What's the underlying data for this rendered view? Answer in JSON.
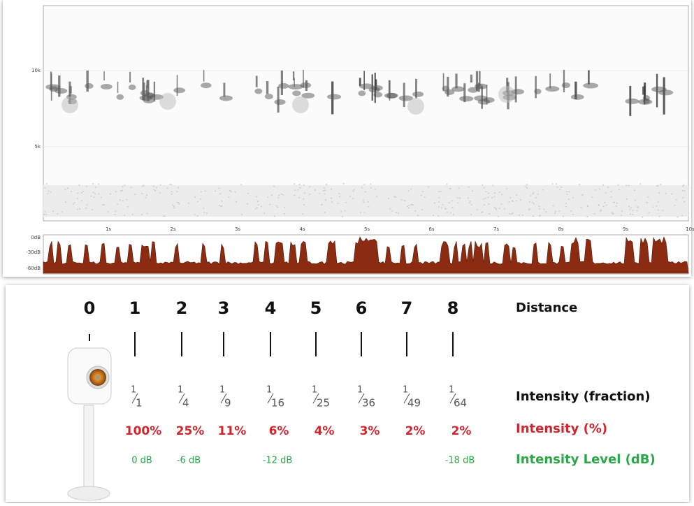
{
  "spectrogram": {
    "frequency_labels": [
      "10k",
      "5k"
    ],
    "time_labels": [
      "1s",
      "2s",
      "3s",
      "4s",
      "5s",
      "6s",
      "7s",
      "8s",
      "9s",
      "10s"
    ],
    "level_labels": [
      "0dB",
      "-30dB",
      "-60dB"
    ]
  },
  "diagram": {
    "distances": [
      0,
      1,
      2,
      3,
      4,
      5,
      6,
      7,
      8
    ],
    "row_titles": {
      "distance": "Distance",
      "fraction": "Intensity (fraction)",
      "percent": "Intensity (%)",
      "level": "Intensity Level (dB)"
    },
    "fractions": [
      {
        "numerator": "1",
        "denominator": "1"
      },
      {
        "numerator": "1",
        "denominator": "4"
      },
      {
        "numerator": "1",
        "denominator": "9"
      },
      {
        "numerator": "1",
        "denominator": "16"
      },
      {
        "numerator": "1",
        "denominator": "25"
      },
      {
        "numerator": "1",
        "denominator": "36"
      },
      {
        "numerator": "1",
        "denominator": "49"
      },
      {
        "numerator": "1",
        "denominator": "64"
      }
    ],
    "percents": [
      "100%",
      "25%",
      "11%",
      "6%",
      "4%",
      "3%",
      "2%",
      "2%"
    ],
    "levels": [
      "0 dB",
      "-6 dB",
      null,
      "-12 dB",
      null,
      null,
      null,
      "-18 dB"
    ]
  }
}
